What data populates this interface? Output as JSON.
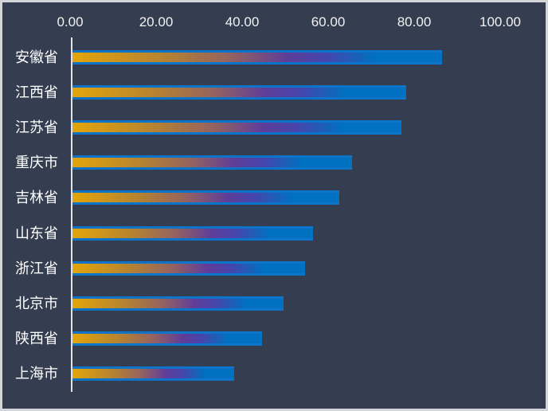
{
  "chart_data": {
    "type": "bar",
    "orientation": "horizontal",
    "title": "",
    "xlabel": "",
    "ylabel": "",
    "categories": [
      "安徽省",
      "江西省",
      "江苏省",
      "重庆市",
      "吉林省",
      "山东省",
      "浙江省",
      "北京市",
      "陕西省",
      "上海市"
    ],
    "values": [
      86,
      77.5,
      76.5,
      65,
      62,
      56,
      54,
      49,
      44,
      37.5
    ],
    "x_ticks": [
      "0.00",
      "20.00",
      "40.00",
      "60.00",
      "80.00",
      "100.00"
    ],
    "xlim": [
      0,
      100
    ],
    "grid": false,
    "legend": false,
    "axis_position": "top",
    "colors": {
      "background": "#343e50",
      "frame": "#d4d5d9",
      "tick_text": "#f2f2f2",
      "category_text": "#ffffff",
      "axis_line": "#e3e3e6",
      "bar_border": "#0e74ca",
      "bar_gradient_start": "#e4a50a",
      "bar_gradient_tan": "#b58231",
      "bar_gradient_mauve": "#96645e",
      "bar_gradient_purple": "#5f3d99",
      "bar_gradient_indigo": "#4745ab",
      "bar_gradient_end": "#0070c0"
    }
  }
}
